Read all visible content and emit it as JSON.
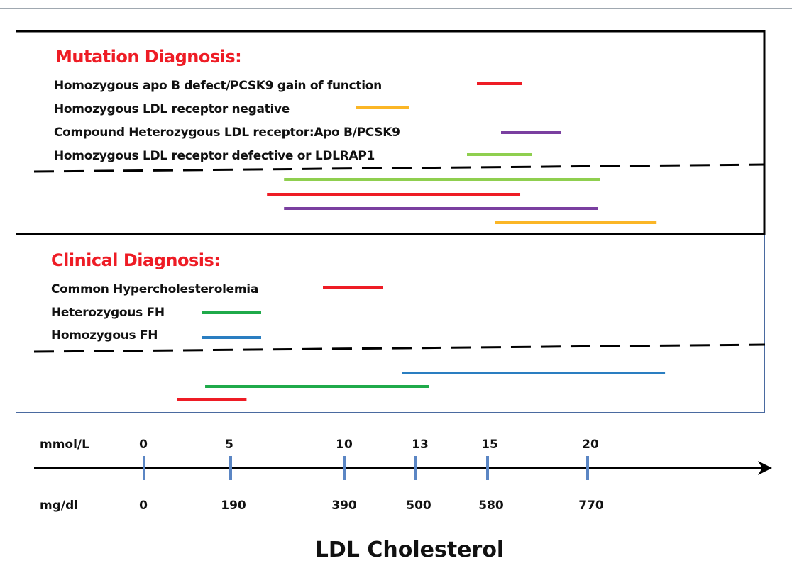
{
  "colors": {
    "red": "#ee1c25",
    "orange": "#fbb626",
    "purple": "#7a3fa0",
    "light_green": "#8fcf4f",
    "green": "#1faa4a",
    "blue": "#2a7ec1",
    "heading": "#ee1c25",
    "tick": "#5b86c4",
    "frame_lower": "#4a6aa0"
  },
  "mutation": {
    "heading": "Mutation Diagnosis:",
    "legend": [
      {
        "label": "Homozygous apo B defect/PCSK9 gain of function",
        "color": "red"
      },
      {
        "label": "Homozygous LDL receptor negative",
        "color": "orange"
      },
      {
        "label": "Compound Heterozygous LDL receptor:Apo B/PCSK9",
        "color": "purple"
      },
      {
        "label": "Homozygous LDL receptor defective or LDLRAP1",
        "color": "light_green"
      }
    ],
    "ranges_mgdl": [
      {
        "color": "light_green",
        "from": 284,
        "to": 794
      },
      {
        "color": "red",
        "from": 254,
        "to": 642
      },
      {
        "color": "purple",
        "from": 284,
        "to": 789
      },
      {
        "color": "orange",
        "from": 594,
        "to": 901
      }
    ]
  },
  "clinical": {
    "heading": "Clinical  Diagnosis:",
    "legend": [
      {
        "label": "Common Hypercholesterolemia",
        "color": "red"
      },
      {
        "label": "Heterozygous FH",
        "color": "green"
      },
      {
        "label": "Homozygous  FH",
        "color": "blue"
      }
    ],
    "ranges_mgdl": [
      {
        "color": "blue",
        "from": 479,
        "to": 917
      },
      {
        "color": "green",
        "from": 134,
        "to": 515
      },
      {
        "color": "red",
        "from": 73,
        "to": 218
      }
    ]
  },
  "axis": {
    "title": "LDL Cholesterol",
    "mmol_label": "mmol/L",
    "mgdl_label": "mg/dl",
    "ticks": [
      {
        "mmol": "0",
        "mgdl": "0"
      },
      {
        "mmol": "5",
        "mgdl": "190"
      },
      {
        "mmol": "10",
        "mgdl": "390"
      },
      {
        "mmol": "13",
        "mgdl": "500"
      },
      {
        "mmol": "15",
        "mgdl": "580"
      },
      {
        "mmol": "20",
        "mgdl": "770"
      }
    ]
  }
}
